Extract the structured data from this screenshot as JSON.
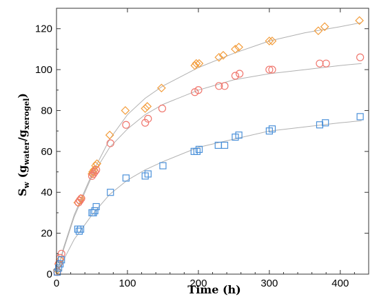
{
  "chart_data": {
    "type": "scatter",
    "title": "",
    "xlabel": "Time (h)",
    "ylabel": {
      "main": "S",
      "sub": "w",
      "open": " (g",
      "num_sub": "water",
      "slash": "/g",
      "den_sub": "xerogel",
      "close": ")"
    },
    "xlim": [
      0,
      440
    ],
    "ylim": [
      0,
      130
    ],
    "xticks": [
      "0",
      "100",
      "200",
      "300",
      "400"
    ],
    "yticks": [
      "0",
      "20",
      "40",
      "60",
      "80",
      "100",
      "120"
    ],
    "grid": false,
    "series": [
      {
        "marker": "diamond",
        "color": "#f39c3a",
        "points": [
          [
            1,
            2
          ],
          [
            3,
            5
          ],
          [
            5,
            7
          ],
          [
            30,
            35
          ],
          [
            32,
            36
          ],
          [
            34,
            37
          ],
          [
            50,
            49
          ],
          [
            51,
            50
          ],
          [
            53,
            51
          ],
          [
            55,
            53
          ],
          [
            57,
            54
          ],
          [
            75,
            68
          ],
          [
            97,
            80
          ],
          [
            125,
            81
          ],
          [
            128,
            82
          ],
          [
            148,
            91
          ],
          [
            195,
            102
          ],
          [
            197,
            103
          ],
          [
            201,
            103
          ],
          [
            229,
            106
          ],
          [
            235,
            107
          ],
          [
            252,
            110
          ],
          [
            257,
            111
          ],
          [
            300,
            114
          ],
          [
            304,
            114
          ],
          [
            369,
            119
          ],
          [
            378,
            121
          ],
          [
            427,
            124
          ]
        ]
      },
      {
        "marker": "circle",
        "color": "#f0766d",
        "points": [
          [
            1,
            1
          ],
          [
            3,
            5
          ],
          [
            5,
            8
          ],
          [
            7,
            10
          ],
          [
            31,
            35
          ],
          [
            33,
            36
          ],
          [
            35,
            37
          ],
          [
            50,
            48
          ],
          [
            52,
            49
          ],
          [
            54,
            50
          ],
          [
            56,
            51
          ],
          [
            76,
            64
          ],
          [
            98,
            73
          ],
          [
            125,
            74
          ],
          [
            129,
            76
          ],
          [
            149,
            81
          ],
          [
            195,
            89
          ],
          [
            200,
            90
          ],
          [
            229,
            92
          ],
          [
            237,
            92
          ],
          [
            252,
            97
          ],
          [
            258,
            98
          ],
          [
            300,
            100
          ],
          [
            304,
            100
          ],
          [
            371,
            103
          ],
          [
            380,
            103
          ],
          [
            428,
            106
          ]
        ]
      },
      {
        "marker": "square",
        "color": "#4a90d9",
        "points": [
          [
            1,
            1
          ],
          [
            3,
            3
          ],
          [
            5,
            5
          ],
          [
            7,
            7
          ],
          [
            30,
            22
          ],
          [
            32,
            21
          ],
          [
            34,
            22
          ],
          [
            50,
            30
          ],
          [
            52,
            30
          ],
          [
            54,
            31
          ],
          [
            56,
            33
          ],
          [
            76,
            40
          ],
          [
            98,
            47
          ],
          [
            125,
            48
          ],
          [
            129,
            49
          ],
          [
            150,
            53
          ],
          [
            194,
            60
          ],
          [
            198,
            60
          ],
          [
            201,
            61
          ],
          [
            228,
            63
          ],
          [
            237,
            63
          ],
          [
            252,
            67
          ],
          [
            257,
            68
          ],
          [
            300,
            70
          ],
          [
            304,
            71
          ],
          [
            371,
            73
          ],
          [
            379,
            74
          ],
          [
            428,
            77
          ]
        ]
      }
    ],
    "fits": [
      {
        "color": "#b0b0b0",
        "points": [
          [
            0,
            0
          ],
          [
            10,
            13
          ],
          [
            25,
            29
          ],
          [
            50,
            49
          ],
          [
            75,
            66
          ],
          [
            100,
            78
          ],
          [
            125,
            86
          ],
          [
            150,
            92
          ],
          [
            200,
            101
          ],
          [
            250,
            108
          ],
          [
            300,
            114
          ],
          [
            350,
            118
          ],
          [
            400,
            121
          ],
          [
            430,
            123
          ]
        ]
      },
      {
        "color": "#b0b0b0",
        "points": [
          [
            0,
            0
          ],
          [
            10,
            12
          ],
          [
            25,
            28
          ],
          [
            50,
            48
          ],
          [
            75,
            62
          ],
          [
            100,
            71
          ],
          [
            125,
            78
          ],
          [
            150,
            83
          ],
          [
            200,
            90
          ],
          [
            250,
            95
          ],
          [
            300,
            98
          ],
          [
            350,
            100
          ],
          [
            400,
            102
          ],
          [
            430,
            103
          ]
        ]
      },
      {
        "color": "#b0b0b0",
        "points": [
          [
            0,
            0
          ],
          [
            10,
            7
          ],
          [
            25,
            17
          ],
          [
            50,
            29
          ],
          [
            75,
            39
          ],
          [
            100,
            46
          ],
          [
            125,
            51
          ],
          [
            150,
            55
          ],
          [
            200,
            62
          ],
          [
            250,
            66
          ],
          [
            300,
            70
          ],
          [
            350,
            72
          ],
          [
            400,
            74
          ],
          [
            430,
            75
          ]
        ]
      }
    ]
  }
}
